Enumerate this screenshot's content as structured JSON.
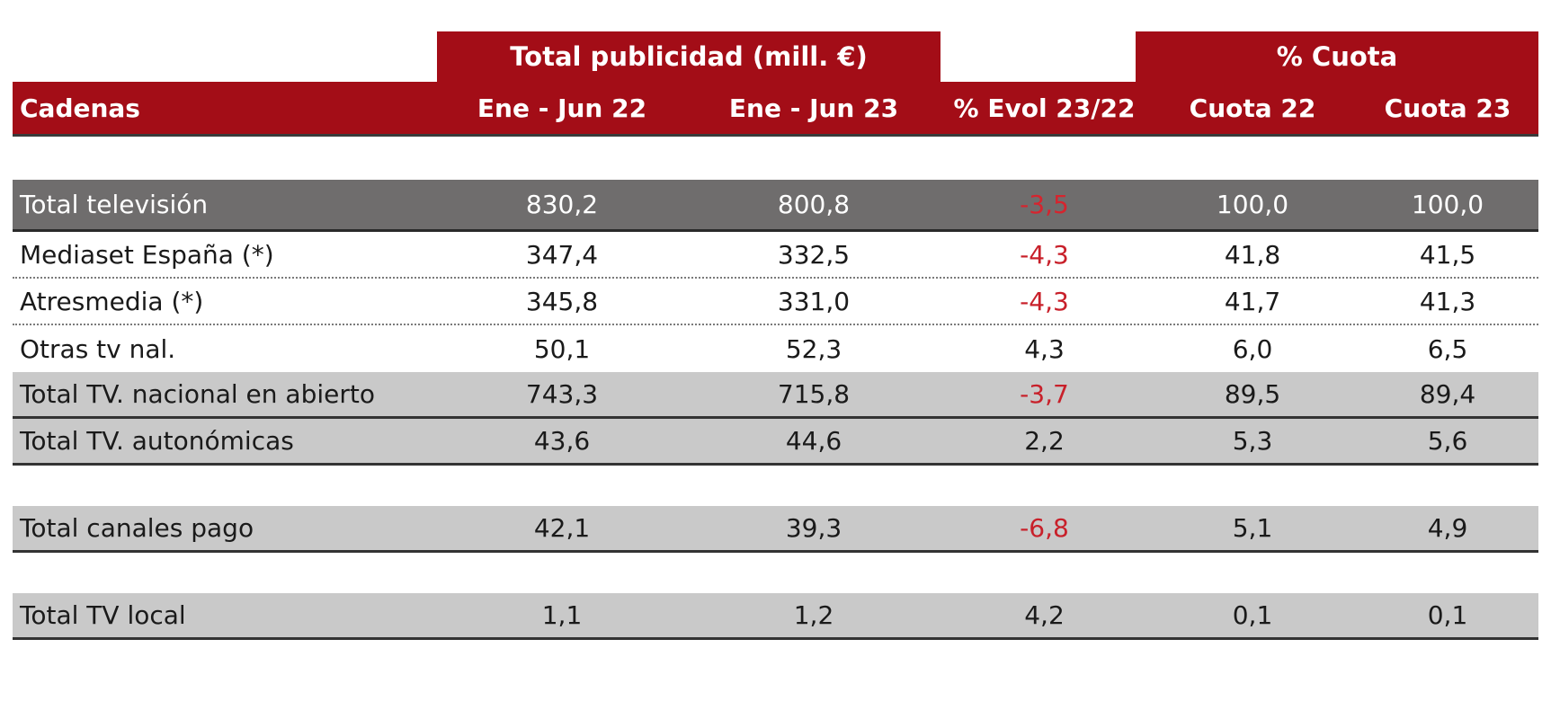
{
  "header": {
    "group_total": "Total publicidad (mill. €)",
    "group_cuota": "% Cuota",
    "columns": [
      "Cadenas",
      "Ene - Jun  22",
      "Ene -  Jun  23",
      "% Evol 23/22",
      "Cuota  22",
      "Cuota 23"
    ]
  },
  "colors": {
    "header_red": "#a30d17",
    "total_gray": "#6f6d6d",
    "subtotal_gray": "#c9c9c9",
    "negative_red": "#c8202a"
  },
  "rows": [
    {
      "name": "Total televisión",
      "v22": "830,2",
      "v23": "800,8",
      "evol": "-3,5",
      "cuota22": "100,0",
      "cuota23": "100,0",
      "style": "total",
      "negative": true
    },
    {
      "name": "Mediaset España (*)",
      "v22": "347,4",
      "v23": "332,5",
      "evol": "-4,3",
      "cuota22": "41,8",
      "cuota23": "41,5",
      "style": "plain",
      "negative": true
    },
    {
      "name": "Atresmedia (*)",
      "v22": "345,8",
      "v23": "331,0",
      "evol": "-4,3",
      "cuota22": "41,7",
      "cuota23": "41,3",
      "style": "plain",
      "negative": true
    },
    {
      "name": "Otras tv nal.",
      "v22": "50,1",
      "v23": "52,3",
      "evol": "4,3",
      "cuota22": "6,0",
      "cuota23": "6,5",
      "style": "plain",
      "negative": false
    },
    {
      "name": "Total TV. nacional en abierto",
      "v22": "743,3",
      "v23": "715,8",
      "evol": "-3,7",
      "cuota22": "89,5",
      "cuota23": "89,4",
      "style": "sub",
      "negative": true
    },
    {
      "name": "Total TV. autonómicas",
      "v22": "43,6",
      "v23": "44,6",
      "evol": "2,2",
      "cuota22": "5,3",
      "cuota23": "5,6",
      "style": "sub",
      "negative": false
    },
    {
      "name": "Total canales pago",
      "v22": "42,1",
      "v23": "39,3",
      "evol": "-6,8",
      "cuota22": "5,1",
      "cuota23": "4,9",
      "style": "sub",
      "negative": true
    },
    {
      "name": "Total TV local",
      "v22": "1,1",
      "v23": "1,2",
      "evol": "4,2",
      "cuota22": "0,1",
      "cuota23": "0,1",
      "style": "sub",
      "negative": false
    }
  ]
}
